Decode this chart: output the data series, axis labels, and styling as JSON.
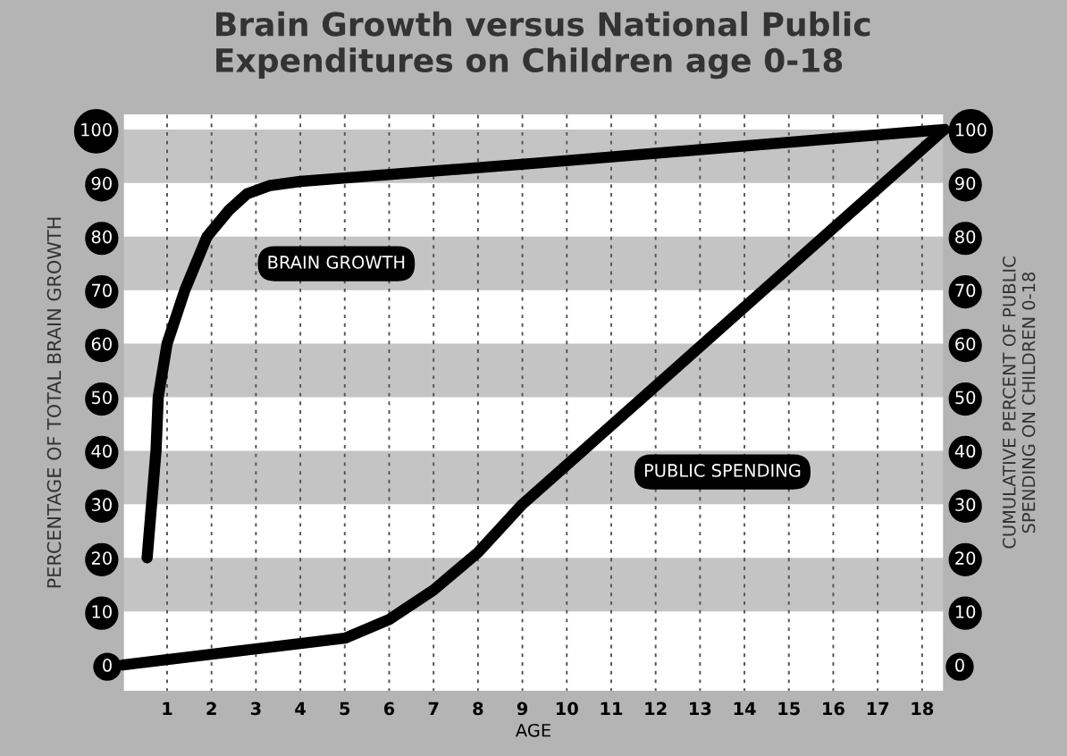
{
  "chart_data": {
    "type": "line",
    "title": "Brain Growth versus National Public\nExpenditures on Children age 0-18",
    "xlabel": "AGE",
    "ylabel": "PERCENTAGE OF TOTAL BRAIN GROWTH",
    "y2label": "CUMULATIVE PERCENT OF PUBLIC\nSPENDING ON CHILDREN 0-18",
    "series": [
      {
        "name": "BRAIN GROWTH",
        "color": "#000000",
        "x": [
          0.55,
          0.75,
          0.8,
          1.0,
          1.4,
          1.9,
          2.4,
          2.8,
          3.3,
          4.0,
          9.3,
          18.5
        ],
        "values": [
          20,
          40,
          50,
          60,
          70,
          80,
          85,
          88,
          89.5,
          90.3,
          93.7,
          100
        ]
      },
      {
        "name": "PUBLIC SPENDING",
        "color": "#000000",
        "axis": "y2",
        "x": [
          0,
          1,
          2,
          3,
          4,
          5,
          6,
          7,
          8,
          9,
          10.7,
          18.5
        ],
        "values": [
          0,
          1,
          2,
          3,
          4,
          5,
          8.5,
          14,
          21,
          30,
          42.5,
          100
        ]
      }
    ],
    "xlim": [
      0,
      18.5
    ],
    "xticks": [
      1,
      2,
      3,
      4,
      5,
      6,
      7,
      8,
      9,
      10,
      11,
      12,
      13,
      14,
      15,
      16,
      17,
      18
    ],
    "ylim": [
      -5,
      103
    ],
    "yticks": [
      0,
      10,
      20,
      30,
      40,
      50,
      60,
      70,
      80,
      90,
      100
    ],
    "y2lim": [
      -5,
      103
    ],
    "y2ticks": [
      0,
      10,
      20,
      30,
      40,
      50,
      60,
      70,
      80,
      90,
      100
    ],
    "bands": [
      {
        "axis": "y",
        "from": 10,
        "to": 20,
        "color": "#c4c4c4"
      },
      {
        "axis": "y",
        "from": 30,
        "to": 40,
        "color": "#c4c4c4"
      },
      {
        "axis": "y",
        "from": 50,
        "to": 60,
        "color": "#c4c4c4"
      },
      {
        "axis": "y",
        "from": 70,
        "to": 80,
        "color": "#c4c4c4"
      },
      {
        "axis": "y",
        "from": 90,
        "to": 100,
        "color": "#c4c4c4"
      }
    ],
    "grid": "x"
  }
}
